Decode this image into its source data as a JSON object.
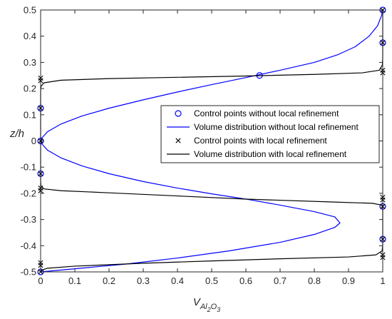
{
  "chart_data": {
    "type": "line",
    "title": "",
    "xlabel": {
      "main": "V",
      "sub1": "Al",
      "sub2": "2",
      "sub3": "O",
      "sub4": "3"
    },
    "ylabel": "z/h",
    "xlim": [
      0,
      1
    ],
    "ylim": [
      -0.5,
      0.5
    ],
    "xticks": [
      0,
      0.1,
      0.2,
      0.3,
      0.4,
      0.5,
      0.6,
      0.7,
      0.8,
      0.9,
      1
    ],
    "xtick_labels": [
      "0",
      "0.1",
      "0.2",
      "0.3",
      "0.4",
      "0.5",
      "0.6",
      "0.7",
      "0.8",
      "0.9",
      "1"
    ],
    "yticks": [
      -0.5,
      -0.4,
      -0.3,
      -0.2,
      -0.1,
      0,
      0.1,
      0.2,
      0.3,
      0.4,
      0.5
    ],
    "ytick_labels": [
      "-0.5",
      "-0.4",
      "-0.3",
      "-0.2",
      "-0.1",
      "0",
      "0.1",
      "0.2",
      "0.3",
      "0.4",
      "0.5"
    ],
    "grid": false,
    "legend_position": "right-middle",
    "colors": {
      "without": "#0000ff",
      "with": "#000000",
      "axis": "#262626"
    },
    "series": [
      {
        "name": "Control points without local refinement",
        "kind": "markers",
        "marker": "circle",
        "color": "#0000ff",
        "points": [
          {
            "x": 0,
            "y": -0.5
          },
          {
            "x": 0,
            "y": -0.125
          },
          {
            "x": 0,
            "y": 0
          },
          {
            "x": 0,
            "y": 0.125
          },
          {
            "x": 0.64,
            "y": 0.25
          },
          {
            "x": 1,
            "y": 0.375
          },
          {
            "x": 1,
            "y": 0.5
          },
          {
            "x": 1,
            "y": -0.25
          },
          {
            "x": 1,
            "y": -0.375
          }
        ]
      },
      {
        "name": "Volume distribution without local refinement",
        "kind": "line",
        "color": "#0000ff",
        "points": [
          {
            "x": 0,
            "y": -0.5
          },
          {
            "x": 0.1,
            "y": -0.488
          },
          {
            "x": 0.25,
            "y": -0.47
          },
          {
            "x": 0.4,
            "y": -0.447
          },
          {
            "x": 0.55,
            "y": -0.42
          },
          {
            "x": 0.7,
            "y": -0.387
          },
          {
            "x": 0.8,
            "y": -0.357
          },
          {
            "x": 0.86,
            "y": -0.33
          },
          {
            "x": 0.875,
            "y": -0.313
          },
          {
            "x": 0.86,
            "y": -0.29
          },
          {
            "x": 0.8,
            "y": -0.27
          },
          {
            "x": 0.7,
            "y": -0.245
          },
          {
            "x": 0.6,
            "y": -0.222
          },
          {
            "x": 0.5,
            "y": -0.202
          },
          {
            "x": 0.4,
            "y": -0.18
          },
          {
            "x": 0.3,
            "y": -0.155
          },
          {
            "x": 0.2,
            "y": -0.125
          },
          {
            "x": 0.12,
            "y": -0.095
          },
          {
            "x": 0.06,
            "y": -0.065
          },
          {
            "x": 0.02,
            "y": -0.035
          },
          {
            "x": 0.004,
            "y": -0.012
          },
          {
            "x": 0,
            "y": 0
          },
          {
            "x": 0.004,
            "y": 0.012
          },
          {
            "x": 0.02,
            "y": 0.035
          },
          {
            "x": 0.06,
            "y": 0.065
          },
          {
            "x": 0.12,
            "y": 0.095
          },
          {
            "x": 0.2,
            "y": 0.125
          },
          {
            "x": 0.3,
            "y": 0.157
          },
          {
            "x": 0.4,
            "y": 0.187
          },
          {
            "x": 0.5,
            "y": 0.215
          },
          {
            "x": 0.6,
            "y": 0.242
          },
          {
            "x": 0.7,
            "y": 0.27
          },
          {
            "x": 0.8,
            "y": 0.3
          },
          {
            "x": 0.87,
            "y": 0.33
          },
          {
            "x": 0.92,
            "y": 0.36
          },
          {
            "x": 0.96,
            "y": 0.4
          },
          {
            "x": 0.985,
            "y": 0.44
          },
          {
            "x": 0.997,
            "y": 0.48
          },
          {
            "x": 1,
            "y": 0.5
          }
        ]
      },
      {
        "name": "Control points with local refinement",
        "kind": "markers",
        "marker": "cross",
        "color": "#000000",
        "points": [
          {
            "x": 0,
            "y": 0.24
          },
          {
            "x": 0,
            "y": 0.23
          },
          {
            "x": 0,
            "y": 0.125
          },
          {
            "x": 0,
            "y": 0
          },
          {
            "x": 0,
            "y": -0.125
          },
          {
            "x": 0,
            "y": -0.18
          },
          {
            "x": 0,
            "y": -0.19
          },
          {
            "x": 0,
            "y": -0.465
          },
          {
            "x": 0,
            "y": -0.475
          },
          {
            "x": 0,
            "y": -0.5
          },
          {
            "x": 1,
            "y": 0.5
          },
          {
            "x": 1,
            "y": 0.375
          },
          {
            "x": 1,
            "y": 0.27
          },
          {
            "x": 1,
            "y": 0.26
          },
          {
            "x": 1,
            "y": -0.215
          },
          {
            "x": 1,
            "y": -0.225
          },
          {
            "x": 1,
            "y": -0.25
          },
          {
            "x": 1,
            "y": -0.375
          },
          {
            "x": 1,
            "y": -0.435
          },
          {
            "x": 1,
            "y": -0.445
          }
        ]
      },
      {
        "name": "Volume distribution with local refinement",
        "kind": "line",
        "color": "#000000",
        "points": [
          {
            "x": 0,
            "y": -0.5
          },
          {
            "x": 0.002,
            "y": -0.494
          },
          {
            "x": 0.02,
            "y": -0.486
          },
          {
            "x": 0.1,
            "y": -0.478
          },
          {
            "x": 0.3,
            "y": -0.467
          },
          {
            "x": 0.5,
            "y": -0.458
          },
          {
            "x": 0.7,
            "y": -0.45
          },
          {
            "x": 0.9,
            "y": -0.443
          },
          {
            "x": 0.98,
            "y": -0.435
          },
          {
            "x": 0.998,
            "y": -0.42
          },
          {
            "x": 1,
            "y": -0.4
          },
          {
            "x": 1,
            "y": -0.26
          },
          {
            "x": 0.998,
            "y": -0.245
          },
          {
            "x": 0.97,
            "y": -0.238
          },
          {
            "x": 0.85,
            "y": -0.233
          },
          {
            "x": 0.6,
            "y": -0.222
          },
          {
            "x": 0.4,
            "y": -0.21
          },
          {
            "x": 0.2,
            "y": -0.198
          },
          {
            "x": 0.06,
            "y": -0.19
          },
          {
            "x": 0.01,
            "y": -0.183
          },
          {
            "x": 0.001,
            "y": -0.172
          },
          {
            "x": 0,
            "y": -0.15
          },
          {
            "x": 0,
            "y": 0.19
          },
          {
            "x": 0.001,
            "y": 0.208
          },
          {
            "x": 0.01,
            "y": 0.222
          },
          {
            "x": 0.06,
            "y": 0.232
          },
          {
            "x": 0.2,
            "y": 0.238
          },
          {
            "x": 0.4,
            "y": 0.243
          },
          {
            "x": 0.6,
            "y": 0.248
          },
          {
            "x": 0.8,
            "y": 0.254
          },
          {
            "x": 0.94,
            "y": 0.26
          },
          {
            "x": 0.99,
            "y": 0.27
          },
          {
            "x": 0.999,
            "y": 0.29
          },
          {
            "x": 1,
            "y": 0.32
          },
          {
            "x": 1,
            "y": 0.5
          }
        ]
      }
    ]
  }
}
